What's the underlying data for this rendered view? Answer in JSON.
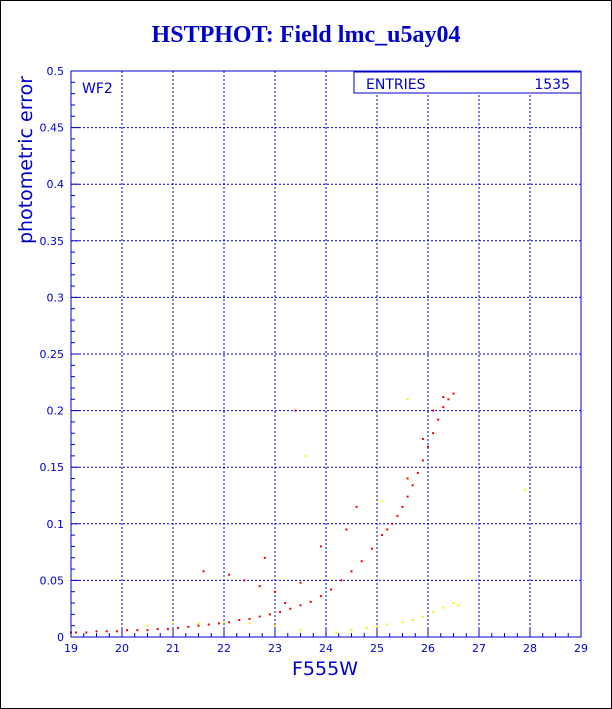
{
  "chart_data": {
    "type": "scatter",
    "title": "HSTPHOT: Field lmc_u5ay04",
    "xlabel": "F555W",
    "ylabel": "photometric error",
    "xlim": [
      19,
      29
    ],
    "ylim": [
      0,
      0.5
    ],
    "x_ticks": [
      "19",
      "20",
      "21",
      "22",
      "23",
      "24",
      "25",
      "26",
      "27",
      "28",
      "29"
    ],
    "y_ticks": [
      "0",
      "0.05",
      "0.1",
      "0.15",
      "0.2",
      "0.25",
      "0.3",
      "0.35",
      "0.4",
      "0.45",
      "0.5"
    ],
    "grid": true,
    "panel_label": "WF2",
    "stats_box": {
      "label": "ENTRIES",
      "value": "1535"
    },
    "colors": {
      "axis": "#0000cc",
      "series_main": "#ee0000",
      "series_secondary": "#ffee00"
    },
    "series": [
      {
        "color": "#ee0000",
        "x": [
          19.0,
          19.1,
          19.3,
          19.5,
          19.7,
          19.9,
          20.1,
          20.3,
          20.5,
          20.7,
          20.9,
          21.1,
          21.3,
          21.5,
          21.7,
          21.9,
          22.1,
          22.3,
          22.5,
          22.7,
          22.9,
          23.1,
          23.3,
          23.5,
          23.7,
          23.9,
          24.1,
          24.3,
          24.5,
          24.7,
          24.9,
          25.1,
          25.3,
          25.4,
          25.5,
          25.6,
          25.7,
          25.8,
          25.9,
          26.0,
          26.1,
          26.2,
          26.3,
          26.4,
          26.5,
          25.2,
          25.6,
          25.9,
          26.1,
          26.3,
          21.6,
          22.1,
          22.4,
          22.7,
          23.0,
          23.4,
          23.5,
          23.9,
          24.4,
          24.6,
          22.8,
          23.2
        ],
        "y": [
          0.004,
          0.004,
          0.004,
          0.005,
          0.005,
          0.005,
          0.006,
          0.006,
          0.006,
          0.007,
          0.007,
          0.008,
          0.009,
          0.01,
          0.011,
          0.012,
          0.013,
          0.015,
          0.016,
          0.018,
          0.02,
          0.022,
          0.025,
          0.028,
          0.031,
          0.036,
          0.042,
          0.05,
          0.058,
          0.067,
          0.078,
          0.09,
          0.1,
          0.107,
          0.115,
          0.124,
          0.134,
          0.145,
          0.156,
          0.168,
          0.18,
          0.192,
          0.203,
          0.21,
          0.215,
          0.095,
          0.14,
          0.175,
          0.2,
          0.212,
          0.058,
          0.055,
          0.05,
          0.045,
          0.04,
          0.2,
          0.048,
          0.08,
          0.095,
          0.115,
          0.07,
          0.03
        ]
      },
      {
        "color": "#ffee00",
        "x": [
          20.5,
          21.0,
          21.5,
          22.0,
          22.5,
          23.0,
          23.5,
          24.0,
          24.2,
          24.5,
          24.8,
          25.0,
          25.2,
          25.5,
          25.7,
          25.9,
          26.1,
          26.3,
          26.5,
          23.6,
          25.1,
          25.6,
          26.6,
          27.9
        ],
        "y": [
          0.01,
          0.012,
          0.012,
          0.013,
          0.012,
          0.01,
          0.006,
          0.003,
          0.004,
          0.006,
          0.008,
          0.009,
          0.011,
          0.013,
          0.015,
          0.018,
          0.022,
          0.026,
          0.03,
          0.16,
          0.12,
          0.21,
          0.028,
          0.13
        ]
      }
    ]
  }
}
